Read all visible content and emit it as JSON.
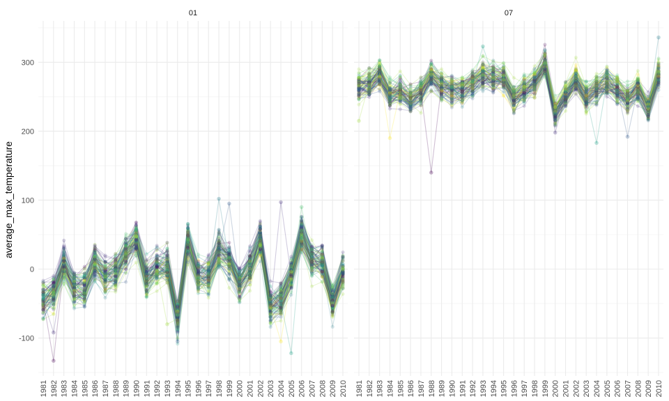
{
  "chart_data": {
    "type": "line",
    "ylabel": "average_max_temperature",
    "xlabel": "",
    "ylim": [
      -155,
      360
    ],
    "y_ticks": [
      -100,
      0,
      100,
      200,
      300
    ],
    "x": [
      "1981",
      "1982",
      "1983",
      "1984",
      "1985",
      "1986",
      "1987",
      "1988",
      "1989",
      "1990",
      "1991",
      "1992",
      "1993",
      "1994",
      "1995",
      "1996",
      "1997",
      "1998",
      "1999",
      "2000",
      "2001",
      "2002",
      "2003",
      "2004",
      "2005",
      "2006",
      "2007",
      "2008",
      "2009",
      "2010"
    ],
    "grid": true,
    "legend": "none",
    "series_count_per_panel": 90,
    "panels": [
      {
        "label": "01",
        "central_trend": [
          -45,
          -35,
          5,
          -28,
          -30,
          8,
          -12,
          -5,
          22,
          42,
          -15,
          0,
          5,
          -72,
          38,
          -12,
          -10,
          25,
          10,
          -22,
          0,
          40,
          -55,
          -48,
          -10,
          48,
          12,
          10,
          -50,
          -5
        ],
        "spread": 22
      },
      {
        "label": "07",
        "central_trend": [
          265,
          270,
          285,
          255,
          258,
          245,
          258,
          282,
          268,
          262,
          260,
          270,
          282,
          278,
          278,
          248,
          262,
          272,
          298,
          230,
          252,
          275,
          250,
          262,
          272,
          262,
          248,
          262,
          235,
          282
        ],
        "spread": 18
      }
    ],
    "outliers": [
      {
        "panel": "01",
        "x": "1982",
        "y": -133
      },
      {
        "panel": "01",
        "x": "1982",
        "y": -92
      },
      {
        "panel": "01",
        "x": "1993",
        "y": -80
      },
      {
        "panel": "01",
        "x": "1994",
        "y": -105
      },
      {
        "panel": "01",
        "x": "1998",
        "y": 102
      },
      {
        "panel": "01",
        "x": "1999",
        "y": 95
      },
      {
        "panel": "01",
        "x": "2004",
        "y": -105
      },
      {
        "panel": "01",
        "x": "2004",
        "y": 97
      },
      {
        "panel": "01",
        "x": "2005",
        "y": -122
      },
      {
        "panel": "01",
        "x": "2006",
        "y": 90
      },
      {
        "panel": "07",
        "x": "1981",
        "y": 215
      },
      {
        "panel": "07",
        "x": "1984",
        "y": 190
      },
      {
        "panel": "07",
        "x": "1988",
        "y": 140
      },
      {
        "panel": "07",
        "x": "1993",
        "y": 323
      },
      {
        "panel": "07",
        "x": "2000",
        "y": 198
      },
      {
        "panel": "07",
        "x": "2004",
        "y": 183
      },
      {
        "panel": "07",
        "x": "2007",
        "y": 192
      },
      {
        "panel": "07",
        "x": "2010",
        "y": 336
      }
    ],
    "palette": [
      "#440154",
      "#46327e",
      "#365c8d",
      "#277f8e",
      "#1fa187",
      "#4ac16d",
      "#a0da39",
      "#fde725"
    ]
  }
}
